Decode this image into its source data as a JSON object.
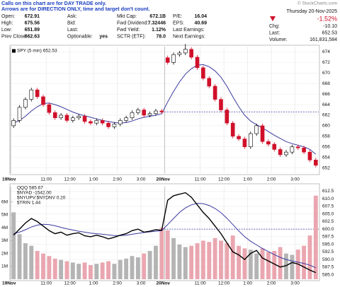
{
  "notice": [
    "Calls on this chart are for DAY TRADE only.",
    "Arrows are for DIRECTION ONLY, time and target don't count."
  ],
  "quote": {
    "columns": [
      [
        {
          "label": "Open:",
          "value": 672.91
        },
        {
          "label": "High:",
          "value": 675.56
        },
        {
          "label": "Low:",
          "value": 651.89
        },
        {
          "label": "Prev Close:",
          "value": 662.63
        }
      ],
      [
        {
          "label": "Ask:"
        },
        {
          "label": "Bid:"
        },
        {
          "label": "Last:"
        },
        {
          "label": "Optionable:",
          "value": "yes"
        }
      ],
      [
        {
          "label": "Mkt Cap:",
          "value": "672.1B"
        },
        {
          "label": "Fwd Dividend:",
          "value": 7.32446
        },
        {
          "label": "Fwd Yield:",
          "value": "1.12%"
        },
        {
          "label": "SCTR (ETF):",
          "value": "78.0"
        }
      ],
      [
        {
          "label": "P/E:",
          "value": 16.04
        },
        {
          "label": "EPS:",
          "value": 40.69
        },
        {
          "label": "Last Earnings:"
        },
        {
          "label": "Next Earnings:"
        }
      ]
    ]
  },
  "summary": {
    "provider": "© StockCharts.com",
    "date": "Thursday 20-Nov-2025",
    "change_pct": "-1.52%",
    "rows": [
      {
        "label": "Chg:",
        "value": "-10.10"
      },
      {
        "label": "Last:",
        "value": 652.53
      },
      {
        "label": "Volume:",
        "value": "161,831,584"
      }
    ]
  },
  "chart_data": [
    {
      "type": "candlestick",
      "annotations": [
        "SPY (5 min) 652.53"
      ],
      "categories": [
        "19Nov",
        null,
        null,
        null,
        null,
        null,
        "11:00",
        null,
        null,
        null,
        "12:00",
        null,
        null,
        null,
        "1:00",
        null,
        null,
        null,
        "2:00",
        null,
        null,
        null,
        "3:00",
        null,
        null,
        null,
        "20Nov",
        null,
        null,
        null,
        null,
        null,
        "11:00",
        null,
        null,
        null,
        "12:00",
        null,
        null,
        null,
        "1:00",
        null,
        null,
        null,
        "2:00",
        null,
        null,
        null,
        "3:00",
        null,
        null,
        null
      ],
      "open": [
        660.0,
        661.0,
        663.5,
        665.0,
        666.8,
        665.5,
        664.0,
        662.5,
        661.5,
        662.0,
        661.0,
        661.5,
        661.8,
        660.8,
        660.5,
        661.0,
        660.5,
        659.8,
        660.3,
        661.0,
        661.5,
        662.5,
        663.0,
        662.0,
        662.3,
        662.8,
        672.9,
        672.0,
        673.5,
        673.8,
        674.5,
        673.0,
        671.0,
        669.0,
        667.5,
        665.0,
        663.0,
        660.5,
        658.0,
        657.5,
        656.0,
        658.5,
        660.0,
        657.0,
        656.5,
        655.5,
        654.5,
        655.0,
        656.0,
        655.8,
        655.0,
        653.5
      ],
      "high": [
        661.4,
        663.9,
        665.4,
        667.2,
        667.2,
        665.9,
        664.4,
        662.9,
        662.4,
        662.4,
        661.9,
        662.2,
        662.2,
        661.2,
        661.4,
        661.4,
        660.9,
        660.7,
        661.4,
        661.9,
        662.9,
        663.4,
        663.4,
        662.7,
        663.2,
        663.2,
        673.3,
        673.9,
        674.2,
        675.5,
        674.9,
        673.4,
        671.4,
        669.4,
        667.9,
        665.4,
        663.4,
        660.9,
        658.4,
        657.9,
        658.9,
        660.4,
        660.4,
        657.4,
        656.9,
        655.9,
        655.4,
        656.4,
        656.4,
        656.2,
        655.4,
        653.9
      ],
      "low": [
        659.6,
        660.6,
        663.1,
        664.6,
        665.1,
        663.6,
        662.1,
        661.1,
        661.1,
        660.6,
        660.6,
        661.1,
        660.4,
        660.1,
        660.1,
        660.1,
        659.4,
        659.4,
        659.9,
        660.6,
        661.1,
        662.1,
        661.6,
        661.6,
        661.9,
        662.2,
        671.6,
        671.6,
        673.1,
        673.4,
        672.6,
        670.6,
        668.6,
        667.1,
        664.6,
        662.6,
        660.1,
        657.6,
        657.1,
        655.6,
        655.6,
        658.1,
        656.6,
        656.1,
        655.1,
        654.1,
        654.1,
        654.6,
        655.4,
        654.6,
        653.1,
        652.1
      ],
      "close": [
        661.0,
        663.5,
        665.0,
        666.8,
        665.5,
        664.0,
        662.5,
        661.5,
        662.0,
        661.0,
        661.5,
        661.8,
        660.8,
        660.5,
        661.0,
        660.5,
        659.8,
        660.3,
        661.0,
        661.5,
        662.5,
        663.0,
        662.0,
        662.3,
        662.8,
        662.6,
        672.0,
        673.5,
        673.8,
        674.5,
        673.0,
        671.0,
        669.0,
        667.5,
        665.0,
        663.0,
        660.5,
        658.0,
        657.5,
        656.0,
        658.5,
        660.0,
        657.0,
        656.5,
        655.5,
        654.5,
        655.0,
        656.0,
        655.8,
        655.0,
        653.5,
        652.5
      ],
      "overlays": [
        {
          "color": "#3a3aa0",
          "values": [
            660.5,
            661.0,
            661.8,
            662.8,
            663.6,
            664.2,
            664.3,
            664.0,
            663.6,
            663.1,
            662.6,
            662.2,
            661.9,
            661.6,
            661.3,
            661.0,
            660.8,
            660.6,
            660.5,
            660.6,
            660.9,
            661.3,
            661.6,
            661.8,
            662.0,
            662.3,
            664.5,
            666.5,
            668.3,
            669.8,
            670.8,
            671.5,
            671.6,
            671.2,
            670.4,
            669.2,
            667.5,
            665.5,
            663.6,
            662.0,
            660.9,
            660.2,
            659.6,
            658.9,
            658.2,
            657.6,
            657.0,
            656.6,
            656.3,
            656.0,
            655.5,
            654.6
          ]
        }
      ],
      "up_color": "#000000",
      "down_color": "#d0102a",
      "ylim": [
        651,
        675
      ],
      "yticks": [
        652,
        654,
        656,
        658,
        660,
        662,
        664,
        666,
        668,
        670,
        672,
        674
      ],
      "grid": true
    },
    {
      "type": "line",
      "annotations": [
        "QQQ 585.67",
        "$NYAD -1542.00",
        "$NYUPV:$NYDNV 0.20",
        "$TRIN 1.44"
      ],
      "categories": [
        "19Nov",
        null,
        null,
        null,
        null,
        null,
        "11:00",
        null,
        null,
        null,
        "12:00",
        null,
        null,
        null,
        "1:00",
        null,
        null,
        null,
        "2:00",
        null,
        null,
        null,
        "3:00",
        null,
        null,
        null,
        "20Nov",
        null,
        null,
        null,
        null,
        null,
        "11:00",
        null,
        null,
        null,
        "12:00",
        null,
        null,
        null,
        "1:00",
        null,
        null,
        null,
        "2:00",
        null,
        null,
        null,
        "3:00",
        null,
        null,
        null
      ],
      "series": [
        {
          "type": "bar",
          "axis": "y2",
          "up_color": "#b4b4b4",
          "down_color": "#eaa6b0",
          "values": [
            5.2,
            3.5,
            2.8,
            2.6,
            2.2,
            2.0,
            1.8,
            1.6,
            1.5,
            1.4,
            1.3,
            1.2,
            1.3,
            1.1,
            1.2,
            1.3,
            1.4,
            1.2,
            1.5,
            1.6,
            1.8,
            1.7,
            2.0,
            2.2,
            2.6,
            4.0,
            3.8,
            3.2,
            2.7,
            2.5,
            2.6,
            2.8,
            3.0,
            2.9,
            3.2,
            3.0,
            2.8,
            3.4,
            2.6,
            2.4,
            2.3,
            2.0,
            2.4,
            2.1,
            2.2,
            2.5,
            2.0,
            1.9,
            2.3,
            2.6,
            3.4,
            6.5
          ]
        },
        {
          "type": "line",
          "color": "#3a3aa0",
          "values": [
            598.5,
            599.0,
            599.8,
            600.7,
            601.3,
            601.6,
            601.5,
            601.1,
            600.6,
            600.1,
            599.7,
            599.3,
            599.0,
            598.7,
            598.5,
            598.3,
            598.1,
            597.9,
            597.9,
            598.0,
            598.3,
            598.6,
            598.9,
            599.1,
            599.3,
            599.5,
            601.5,
            603.5,
            605.5,
            607.0,
            608.0,
            608.5,
            608.4,
            607.8,
            606.8,
            605.4,
            603.6,
            601.5,
            599.4,
            597.5,
            596.0,
            594.8,
            593.6,
            592.6,
            591.6,
            590.7,
            590.0,
            589.5,
            589.1,
            588.7,
            588.1,
            587.3
          ]
        },
        {
          "type": "line",
          "color": "#000000",
          "values": [
            598.0,
            600.0,
            602.0,
            603.5,
            602.5,
            601.0,
            599.5,
            598.5,
            599.0,
            598.0,
            598.5,
            598.8,
            597.8,
            597.5,
            598.0,
            597.5,
            596.8,
            597.3,
            598.0,
            598.5,
            599.5,
            600.0,
            599.0,
            599.3,
            599.8,
            599.6,
            609.5,
            611.0,
            611.5,
            612.0,
            610.5,
            608.0,
            605.5,
            603.5,
            601.0,
            598.5,
            595.5,
            592.5,
            591.5,
            590.0,
            592.0,
            593.0,
            590.5,
            589.5,
            588.5,
            587.5,
            588.0,
            589.0,
            588.5,
            587.5,
            586.5,
            585.7
          ]
        }
      ],
      "reference_line": 600,
      "ylim": [
        583.5,
        614
      ],
      "yticks": [
        {
          "value": 585,
          "label": "585.0"
        },
        587.5,
        {
          "value": 590,
          "label": "590.0"
        },
        592.5,
        {
          "value": 595,
          "label": "595.0"
        },
        597.5,
        {
          "value": 600,
          "label": "600.0"
        },
        602.5,
        {
          "value": 605,
          "label": "605.0"
        },
        607.5,
        {
          "value": 610,
          "label": "610.0"
        },
        612.5
      ],
      "y2lim": [
        0,
        7.2
      ],
      "y2ticks": [
        {
          "value": 1,
          "label": "1M"
        },
        {
          "value": 2,
          "label": "2M"
        },
        {
          "value": 3,
          "label": "3M"
        },
        {
          "value": 4,
          "label": "4M"
        },
        {
          "value": 5,
          "label": "5M"
        },
        {
          "value": 6,
          "label": "6M"
        }
      ],
      "grid": true
    }
  ]
}
